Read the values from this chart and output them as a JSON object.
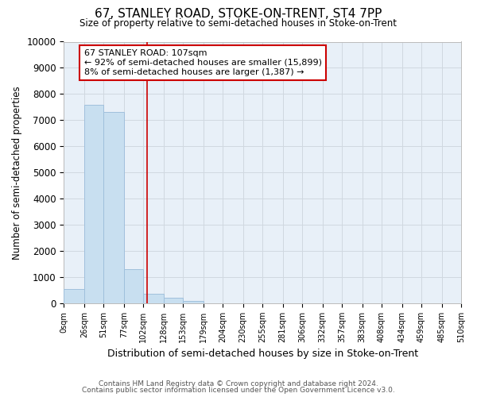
{
  "title": "67, STANLEY ROAD, STOKE-ON-TRENT, ST4 7PP",
  "subtitle": "Size of property relative to semi-detached houses in Stoke-on-Trent",
  "xlabel": "Distribution of semi-detached houses by size in Stoke-on-Trent",
  "ylabel": "Number of semi-detached properties",
  "footer_line1": "Contains HM Land Registry data © Crown copyright and database right 2024.",
  "footer_line2": "Contains public sector information licensed under the Open Government Licence v3.0.",
  "bar_edges": [
    0,
    26,
    51,
    77,
    102,
    128,
    153,
    179,
    204,
    230,
    255,
    281,
    306,
    332,
    357,
    383,
    408,
    434,
    459,
    485,
    510
  ],
  "bar_heights": [
    550,
    7600,
    7300,
    1300,
    350,
    200,
    100,
    0,
    0,
    0,
    0,
    0,
    0,
    0,
    0,
    0,
    0,
    0,
    0,
    0
  ],
  "tick_labels": [
    "0sqm",
    "26sqm",
    "51sqm",
    "77sqm",
    "102sqm",
    "128sqm",
    "153sqm",
    "179sqm",
    "204sqm",
    "230sqm",
    "255sqm",
    "281sqm",
    "306sqm",
    "332sqm",
    "357sqm",
    "383sqm",
    "408sqm",
    "434sqm",
    "459sqm",
    "485sqm",
    "510sqm"
  ],
  "bar_color": "#c8dff0",
  "bar_edge_color": "#a0c0dc",
  "vline_x": 107,
  "vline_color": "#cc0000",
  "ylim": [
    0,
    10000
  ],
  "yticks": [
    0,
    1000,
    2000,
    3000,
    4000,
    5000,
    6000,
    7000,
    8000,
    9000,
    10000
  ],
  "annotation_text": "67 STANLEY ROAD: 107sqm\n← 92% of semi-detached houses are smaller (15,899)\n8% of semi-detached houses are larger (1,387) →",
  "annotation_box_color": "#ffffff",
  "annotation_border_color": "#cc0000",
  "grid_color": "#d0d8e0",
  "bg_color": "#ffffff",
  "plot_bg_color": "#e8f0f8"
}
